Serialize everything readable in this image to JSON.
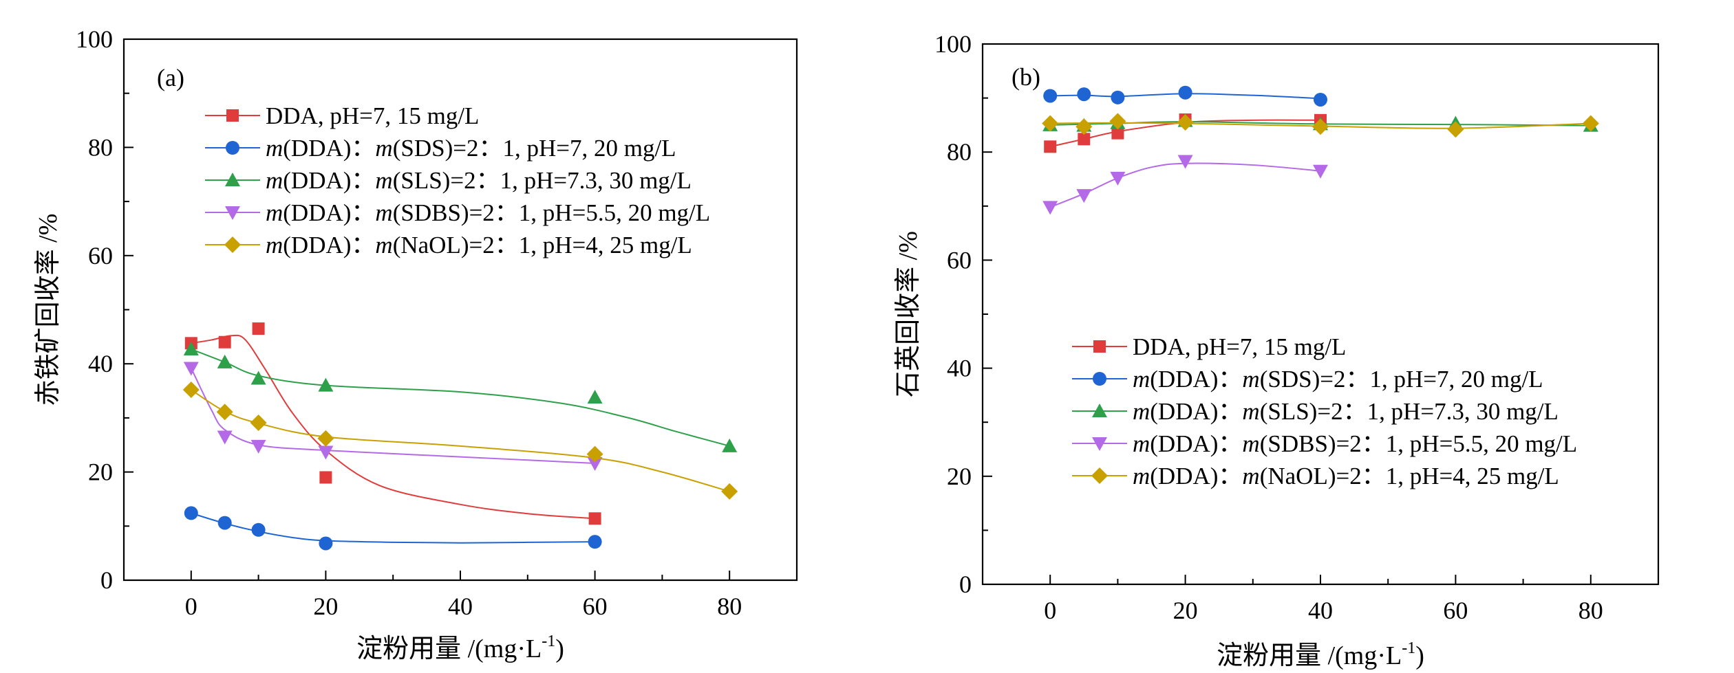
{
  "chart_data": [
    {
      "type": "line",
      "panel_label": "(a)",
      "xlabel": "淀粉用量 /(mg·L",
      "xlabel_sup": "-1",
      "xlabel_tail": ")",
      "ylabel": "赤铁矿回收率 /%",
      "xlim": [
        -10,
        90
      ],
      "ylim": [
        0,
        100
      ],
      "x_ticks": [
        0,
        20,
        40,
        60,
        80
      ],
      "y_ticks": [
        0,
        20,
        40,
        60,
        80,
        100
      ],
      "legend_position": "top-left",
      "series": [
        {
          "name": "DDA, pH=7, 15 mg/L",
          "legend": [
            {
              "t": "DDA, pH=7, 15 mg/L",
              "i": false
            }
          ],
          "marker": "square",
          "color": "#e03c3c",
          "x": [
            0,
            5,
            10,
            20,
            60
          ],
          "y": [
            43.8,
            44.0,
            46.5,
            19.0,
            11.4
          ],
          "curve": [
            [
              0,
              43.8
            ],
            [
              3,
              44.4
            ],
            [
              6,
              45.2
            ],
            [
              8,
              44.5
            ],
            [
              11,
              39
            ],
            [
              15,
              31
            ],
            [
              20,
              24
            ],
            [
              28,
              17.5
            ],
            [
              40,
              14
            ],
            [
              50,
              12.3
            ],
            [
              60,
              11.4
            ]
          ]
        },
        {
          "name": "m(DDA)：m(SDS)=2：1, pH=7, 20 mg/L",
          "legend": [
            {
              "t": "m",
              "i": true
            },
            {
              "t": "(DDA)：",
              "i": false
            },
            {
              "t": "m",
              "i": true
            },
            {
              "t": "(SDS)=2：1, pH=7, 20 mg/L",
              "i": false
            }
          ],
          "marker": "circle",
          "color": "#1e64d2",
          "x": [
            0,
            5,
            10,
            20,
            60
          ],
          "y": [
            12.4,
            10.6,
            9.3,
            6.8,
            7.1
          ],
          "curve": [
            [
              0,
              12.4
            ],
            [
              5,
              10.5
            ],
            [
              10,
              9.0
            ],
            [
              15,
              7.9
            ],
            [
              20,
              7.3
            ],
            [
              30,
              7.0
            ],
            [
              40,
              6.9
            ],
            [
              50,
              7.0
            ],
            [
              60,
              7.1
            ]
          ]
        },
        {
          "name": "m(DDA)：m(SLS)=2：1, pH=7.3, 30 mg/L",
          "legend": [
            {
              "t": "m",
              "i": true
            },
            {
              "t": "(DDA)：",
              "i": false
            },
            {
              "t": "m",
              "i": true
            },
            {
              "t": "(SLS)=2：1, pH=7.3, 30 mg/L",
              "i": false
            }
          ],
          "marker": "triangle-up",
          "color": "#2ea04a",
          "x": [
            0,
            5,
            10,
            20,
            60,
            80
          ],
          "y": [
            42.7,
            40.3,
            37.3,
            36.0,
            33.8,
            24.8
          ],
          "curve": [
            [
              0,
              42.7
            ],
            [
              5,
              40.3
            ],
            [
              10,
              37.8
            ],
            [
              20,
              36.0
            ],
            [
              40,
              34.8
            ],
            [
              55,
              32.7
            ],
            [
              65,
              30.0
            ],
            [
              72,
              27.5
            ],
            [
              80,
              24.8
            ]
          ]
        },
        {
          "name": "m(DDA)：m(SDBS)=2：1, pH=5.5, 20 mg/L",
          "legend": [
            {
              "t": "m",
              "i": true
            },
            {
              "t": "(DDA)：",
              "i": false
            },
            {
              "t": "m",
              "i": true
            },
            {
              "t": "(SDBS)=2：1, pH=5.5, 20 mg/L",
              "i": false
            }
          ],
          "marker": "triangle-down",
          "color": "#b469e6",
          "x": [
            0,
            5,
            10,
            20,
            60
          ],
          "y": [
            39.2,
            26.5,
            24.8,
            23.7,
            21.6
          ],
          "curve": [
            [
              0,
              39.2
            ],
            [
              3,
              31.5
            ],
            [
              5,
              27.8
            ],
            [
              10,
              25.0
            ],
            [
              20,
              24.0
            ],
            [
              40,
              22.8
            ],
            [
              60,
              21.6
            ]
          ]
        },
        {
          "name": "m(DDA)：m(NaOL)=2：1, pH=4, 25 mg/L",
          "legend": [
            {
              "t": "m",
              "i": true
            },
            {
              "t": "(DDA)：",
              "i": false
            },
            {
              "t": "m",
              "i": true
            },
            {
              "t": "(NaOL)=2：1, pH=4, 25 mg/L",
              "i": false
            }
          ],
          "marker": "diamond",
          "color": "#c8a000",
          "x": [
            0,
            5,
            10,
            20,
            60,
            80
          ],
          "y": [
            35.2,
            31.1,
            29.1,
            26.2,
            23.3,
            16.4
          ],
          "curve": [
            [
              0,
              35.2
            ],
            [
              5,
              31.2
            ],
            [
              10,
              29.0
            ],
            [
              20,
              26.5
            ],
            [
              40,
              24.8
            ],
            [
              60,
              22.6
            ],
            [
              70,
              20.0
            ],
            [
              80,
              16.4
            ]
          ]
        }
      ]
    },
    {
      "type": "line",
      "panel_label": "(b)",
      "xlabel": "淀粉用量 /(mg·L",
      "xlabel_sup": "-1",
      "xlabel_tail": ")",
      "ylabel": "石英回收率 /%",
      "xlim": [
        -10,
        90
      ],
      "ylim": [
        0,
        100
      ],
      "x_ticks": [
        0,
        20,
        40,
        60,
        80
      ],
      "y_ticks": [
        0,
        20,
        40,
        60,
        80,
        100
      ],
      "legend_position": "bottom-center",
      "series": [
        {
          "name": "DDA, pH=7, 15 mg/L",
          "legend": [
            {
              "t": "DDA, pH=7,  15 mg/L",
              "i": false
            }
          ],
          "marker": "square",
          "color": "#e03c3c",
          "x": [
            0,
            5,
            10,
            20,
            40
          ],
          "y": [
            81.0,
            82.4,
            83.5,
            86.0,
            85.9
          ],
          "curve": [
            [
              0,
              81.0
            ],
            [
              5,
              82.4
            ],
            [
              10,
              83.8
            ],
            [
              20,
              85.5
            ],
            [
              30,
              85.9
            ],
            [
              40,
              85.9
            ]
          ]
        },
        {
          "name": "m(DDA)：m(SDS)=2：1, pH=7, 20 mg/L",
          "legend": [
            {
              "t": "m",
              "i": true
            },
            {
              "t": "(DDA)：",
              "i": false
            },
            {
              "t": "m",
              "i": true
            },
            {
              "t": "(SDS)=2：1, pH=7, 20 mg/L",
              "i": false
            }
          ],
          "marker": "circle",
          "color": "#1e64d2",
          "x": [
            0,
            5,
            10,
            20,
            40
          ],
          "y": [
            90.4,
            90.7,
            90.1,
            91.0,
            89.7
          ],
          "curve": [
            [
              0,
              90.4
            ],
            [
              5,
              90.5
            ],
            [
              10,
              90.3
            ],
            [
              20,
              90.8
            ],
            [
              30,
              90.5
            ],
            [
              40,
              89.9
            ]
          ]
        },
        {
          "name": "m(DDA)：m(SLS)=2：1, pH=7.3, 30 mg/L",
          "legend": [
            {
              "t": "m",
              "i": true
            },
            {
              "t": "(DDA)：",
              "i": false
            },
            {
              "t": "m",
              "i": true
            },
            {
              "t": "(SLS)=2：1, pH=7.3, 30 mg/L",
              "i": false
            }
          ],
          "marker": "triangle-up",
          "color": "#2ea04a",
          "x": [
            0,
            5,
            10,
            20,
            40,
            60,
            80
          ],
          "y": [
            85.0,
            84.9,
            85.4,
            85.8,
            85.2,
            85.3,
            84.9
          ],
          "curve": [
            [
              0,
              85.0
            ],
            [
              10,
              85.3
            ],
            [
              20,
              85.6
            ],
            [
              40,
              85.2
            ],
            [
              60,
              85.1
            ],
            [
              80,
              84.9
            ]
          ]
        },
        {
          "name": "m(DDA)：m(SDBS)=2：1, pH=5.5, 20 mg/L",
          "legend": [
            {
              "t": "m",
              "i": true
            },
            {
              "t": "(DDA)：",
              "i": false
            },
            {
              "t": "m",
              "i": true
            },
            {
              "t": "(SDBS)=2：1, pH=5.5, 20 mg/L",
              "i": false
            }
          ],
          "marker": "triangle-down",
          "color": "#b469e6",
          "x": [
            0,
            5,
            10,
            20,
            40
          ],
          "y": [
            69.8,
            72.0,
            75.2,
            78.3,
            76.5
          ],
          "curve": [
            [
              0,
              69.8
            ],
            [
              5,
              72.3
            ],
            [
              10,
              75.2
            ],
            [
              15,
              77.2
            ],
            [
              20,
              77.9
            ],
            [
              30,
              77.6
            ],
            [
              40,
              76.5
            ]
          ]
        },
        {
          "name": "m(DDA)：m(NaOL)=2：1, pH=4, 25 mg/L",
          "legend": [
            {
              "t": "m",
              "i": true
            },
            {
              "t": "(DDA)：",
              "i": false
            },
            {
              "t": "m",
              "i": true
            },
            {
              "t": "(NaOL)=2：1, pH=4, 25 mg/L",
              "i": false
            }
          ],
          "marker": "diamond",
          "color": "#c8a000",
          "x": [
            0,
            5,
            10,
            20,
            40,
            60,
            80
          ],
          "y": [
            85.3,
            84.7,
            85.7,
            85.5,
            84.7,
            84.2,
            85.3
          ],
          "curve": [
            [
              0,
              85.3
            ],
            [
              10,
              85.4
            ],
            [
              20,
              85.3
            ],
            [
              40,
              84.8
            ],
            [
              60,
              84.4
            ],
            [
              80,
              85.3
            ]
          ]
        }
      ]
    }
  ]
}
